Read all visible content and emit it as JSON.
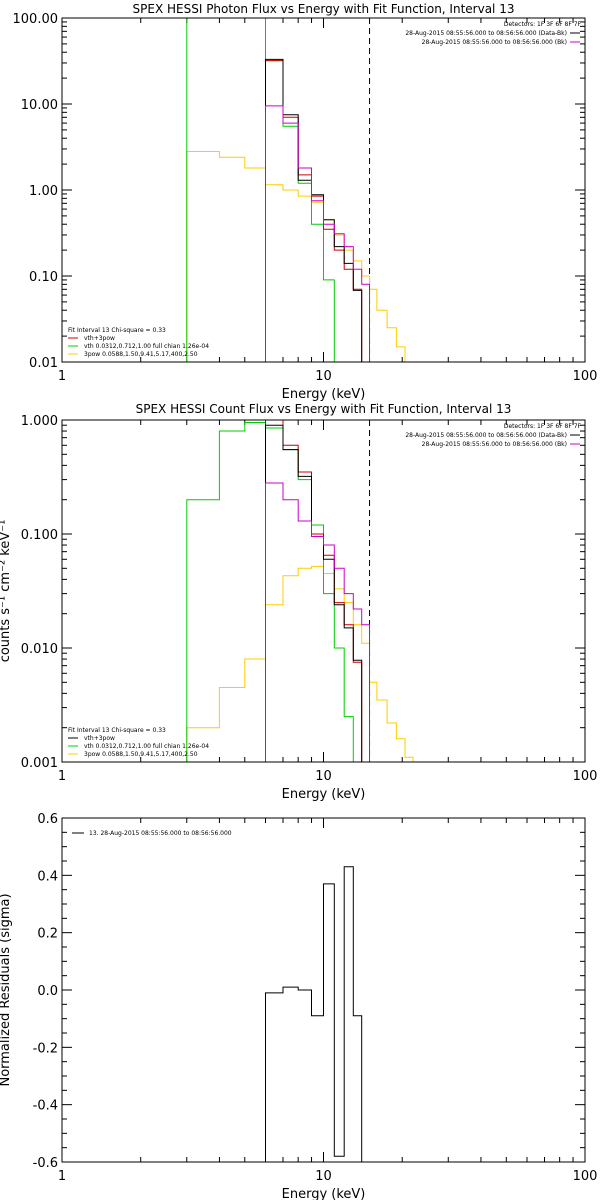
{
  "chart_data": [
    {
      "type": "line",
      "step": true,
      "title": "SPEX HESSI Photon Flux vs Energy with Fit Function, Interval 13",
      "xlabel": "Energy (keV)",
      "ylabel": "",
      "xscale": "log",
      "yscale": "log",
      "xlim": [
        1,
        100
      ],
      "ylim": [
        0.01,
        100
      ],
      "grid": false,
      "x_ticks": [
        1,
        10,
        100
      ],
      "x_tick_labels": [
        "1",
        "10",
        "100"
      ],
      "y_ticks": [
        0.01,
        0.1,
        1,
        10,
        100
      ],
      "y_tick_labels": [
        "0.01",
        "0.10",
        "1.00",
        "10.00",
        "100.00"
      ],
      "vlines": [
        {
          "x": 6.0,
          "color": "#cc00cc",
          "style": "dotted"
        },
        {
          "x": 15.0,
          "color": "#000000",
          "style": "dashed"
        }
      ],
      "header_text": {
        "detectors": "Detectors: 1F 3F 6F 8F 7F",
        "bk_lines": [
          {
            "text": "28-Aug-2015 08:55:56.000 to 08:56:56.000 (Data-Bk)",
            "color": "#000000"
          },
          {
            "text": "28-Aug-2015 08:55:56.000 to 08:56:56.000 (Bk)",
            "color": "#cc00cc"
          }
        ]
      },
      "fit_legend": [
        {
          "text": "Fit Interval 13    Chi-square = 0.33",
          "color": "#000000",
          "line": false
        },
        {
          "text": "vth+3pow",
          "color": "#cc0000",
          "line": true
        },
        {
          "text": "vth 0.0312,0.712,1.00   full chian 1.26e-04",
          "color": "#00cc00",
          "line": true
        },
        {
          "text": "3pow 0.0588,1.50,9.41,5.17,400,2.50",
          "color": "#ffcc00",
          "line": true
        }
      ],
      "series": [
        {
          "color": "#ffcc00",
          "edges": [
            3.0,
            4.0,
            5.0,
            6.0,
            7.0,
            8.0,
            9.0,
            10.0,
            11.0,
            12.0,
            13.0,
            14.0,
            15.0,
            16.0,
            17.5,
            19.0,
            20.5
          ],
          "values": [
            2.8,
            2.4,
            1.8,
            1.15,
            1.0,
            0.85,
            0.72,
            0.45,
            0.3,
            0.2,
            0.15,
            0.1,
            0.07,
            0.04,
            0.025,
            0.015,
            0.01
          ]
        },
        {
          "color": "#00cc00",
          "edges": [
            3.0,
            6.0,
            7.0,
            8.0,
            9.0,
            10.0,
            11.0,
            12.0
          ],
          "values": [
            100,
            32,
            5.5,
            1.2,
            0.4,
            0.09,
            0.01
          ]
        },
        {
          "color": "#cc0000",
          "edges": [
            6.0,
            7.0,
            8.0,
            9.0,
            10.0,
            11.0,
            12.0,
            13.0,
            14.0,
            15.0
          ],
          "values": [
            32,
            7.0,
            1.5,
            0.85,
            0.35,
            0.2,
            0.12,
            0.07,
            0.01
          ]
        },
        {
          "color": "#000000",
          "edges": [
            6.0,
            7.0,
            8.0,
            9.0,
            10.0,
            11.0,
            12.0,
            13.0,
            14.0,
            15.0
          ],
          "values": [
            33,
            7.5,
            1.3,
            0.88,
            0.45,
            0.22,
            0.14,
            0.068,
            0.01
          ]
        },
        {
          "color": "#cc00cc",
          "edges": [
            6.0,
            7.0,
            8.0,
            9.0,
            10.0,
            11.0,
            12.0,
            13.0,
            14.0,
            15.0
          ],
          "values": [
            9.5,
            6.0,
            1.8,
            0.75,
            0.4,
            0.31,
            0.22,
            0.12,
            0.08
          ]
        }
      ]
    },
    {
      "type": "line",
      "step": true,
      "title": "SPEX HESSI Count Flux vs Energy with Fit Function, Interval 13",
      "xlabel": "Energy (keV)",
      "ylabel": "counts s⁻¹ cm⁻² keV⁻¹",
      "xscale": "log",
      "yscale": "log",
      "xlim": [
        1,
        100
      ],
      "ylim": [
        0.001,
        1
      ],
      "grid": false,
      "x_ticks": [
        1,
        10,
        100
      ],
      "x_tick_labels": [
        "1",
        "10",
        "100"
      ],
      "y_ticks": [
        0.001,
        0.01,
        0.1,
        1
      ],
      "y_tick_labels": [
        "0.001",
        "0.010",
        "0.100",
        "1.000"
      ],
      "vlines": [
        {
          "x": 6.0,
          "color": "#cc00cc",
          "style": "dotted"
        },
        {
          "x": 15.0,
          "color": "#000000",
          "style": "dashed"
        }
      ],
      "header_text": {
        "detectors": "Detectors: 1F 3F 6F 8F 7F",
        "bk_lines": [
          {
            "text": "28-Aug-2015 08:55:56.000 to 08:56:56.000 (Data-Bk)",
            "color": "#000000"
          },
          {
            "text": "28-Aug-2015 08:55:56.000 to 08:56:56.000 (Bk)",
            "color": "#cc00cc"
          }
        ]
      },
      "fit_legend": [
        {
          "text": "Fit Interval 13    Chi-square = 0.33",
          "color": "#000000",
          "line": false
        },
        {
          "text": "vth+3pow",
          "color": "#000000",
          "line": true
        },
        {
          "text": "vth 0.0312,0.712,1.00   full chian 1.26e-04",
          "color": "#00cc00",
          "line": true
        },
        {
          "text": "3pow 0.0588,1.50,9.41,5.17,400,2.50",
          "color": "#ffcc00",
          "line": true
        }
      ],
      "series": [
        {
          "color": "#ffcc00",
          "edges": [
            3.0,
            4.0,
            5.0,
            6.0,
            7.0,
            8.0,
            9.0,
            10.0,
            11.0,
            12.0,
            13.0,
            14.0,
            15.0,
            16.0,
            17.5,
            19.0,
            20.5,
            22.0
          ],
          "values": [
            0.002,
            0.0045,
            0.008,
            0.024,
            0.043,
            0.05,
            0.052,
            0.045,
            0.033,
            0.025,
            0.016,
            0.011,
            0.005,
            0.0035,
            0.0022,
            0.0016,
            0.0011
          ]
        },
        {
          "color": "#00cc00",
          "edges": [
            3.0,
            4.0,
            5.0,
            6.0,
            7.0,
            8.0,
            9.0,
            10.0,
            11.0,
            12.0,
            13.0
          ],
          "values": [
            0.2,
            0.8,
            0.95,
            0.85,
            0.55,
            0.3,
            0.12,
            0.03,
            0.01,
            0.0025
          ]
        },
        {
          "color": "#cc0000",
          "edges": [
            6.0,
            7.0,
            8.0,
            9.0,
            10.0,
            11.0,
            12.0,
            13.0,
            14.0,
            15.0
          ],
          "values": [
            1.0,
            0.6,
            0.35,
            0.1,
            0.065,
            0.025,
            0.016,
            0.0075,
            0.001
          ]
        },
        {
          "color": "#000000",
          "edges": [
            6.0,
            7.0,
            8.0,
            9.0,
            10.0,
            11.0,
            12.0,
            13.0,
            14.0,
            15.0
          ],
          "values": [
            0.9,
            0.55,
            0.32,
            0.095,
            0.06,
            0.024,
            0.015,
            0.0078,
            0.001
          ]
        },
        {
          "color": "#cc00cc",
          "edges": [
            6.0,
            7.0,
            8.0,
            9.0,
            10.0,
            11.0,
            12.0,
            13.0,
            14.0,
            15.0
          ],
          "values": [
            0.28,
            0.2,
            0.13,
            0.095,
            0.08,
            0.05,
            0.03,
            0.022,
            0.016
          ]
        }
      ]
    },
    {
      "type": "line",
      "step": true,
      "title": "",
      "xlabel": "Energy (keV)",
      "ylabel": "Normalized Residuals (sigma)",
      "xscale": "log",
      "yscale": "linear",
      "xlim": [
        1,
        100
      ],
      "ylim": [
        -0.6,
        0.6
      ],
      "grid": false,
      "x_ticks": [
        1,
        10,
        100
      ],
      "x_tick_labels": [
        "1",
        "10",
        "100"
      ],
      "y_ticks": [
        -0.6,
        -0.4,
        -0.2,
        0.0,
        0.2,
        0.4,
        0.6
      ],
      "y_tick_labels": [
        "-0.6",
        "-0.4",
        "-0.2",
        "0.0",
        "0.2",
        "0.4",
        "0.6"
      ],
      "legend": "13. 28-Aug-2015 08:55:56.000 to 08:56:56.000",
      "series": [
        {
          "color": "#000000",
          "edges": [
            6.0,
            7.0,
            8.0,
            9.0,
            10.0,
            11.0,
            12.0,
            13.0,
            14.0,
            15.0
          ],
          "values": [
            -0.01,
            0.01,
            0.0,
            -0.09,
            0.37,
            -0.58,
            0.43,
            -0.09,
            -0.6
          ]
        }
      ]
    }
  ]
}
